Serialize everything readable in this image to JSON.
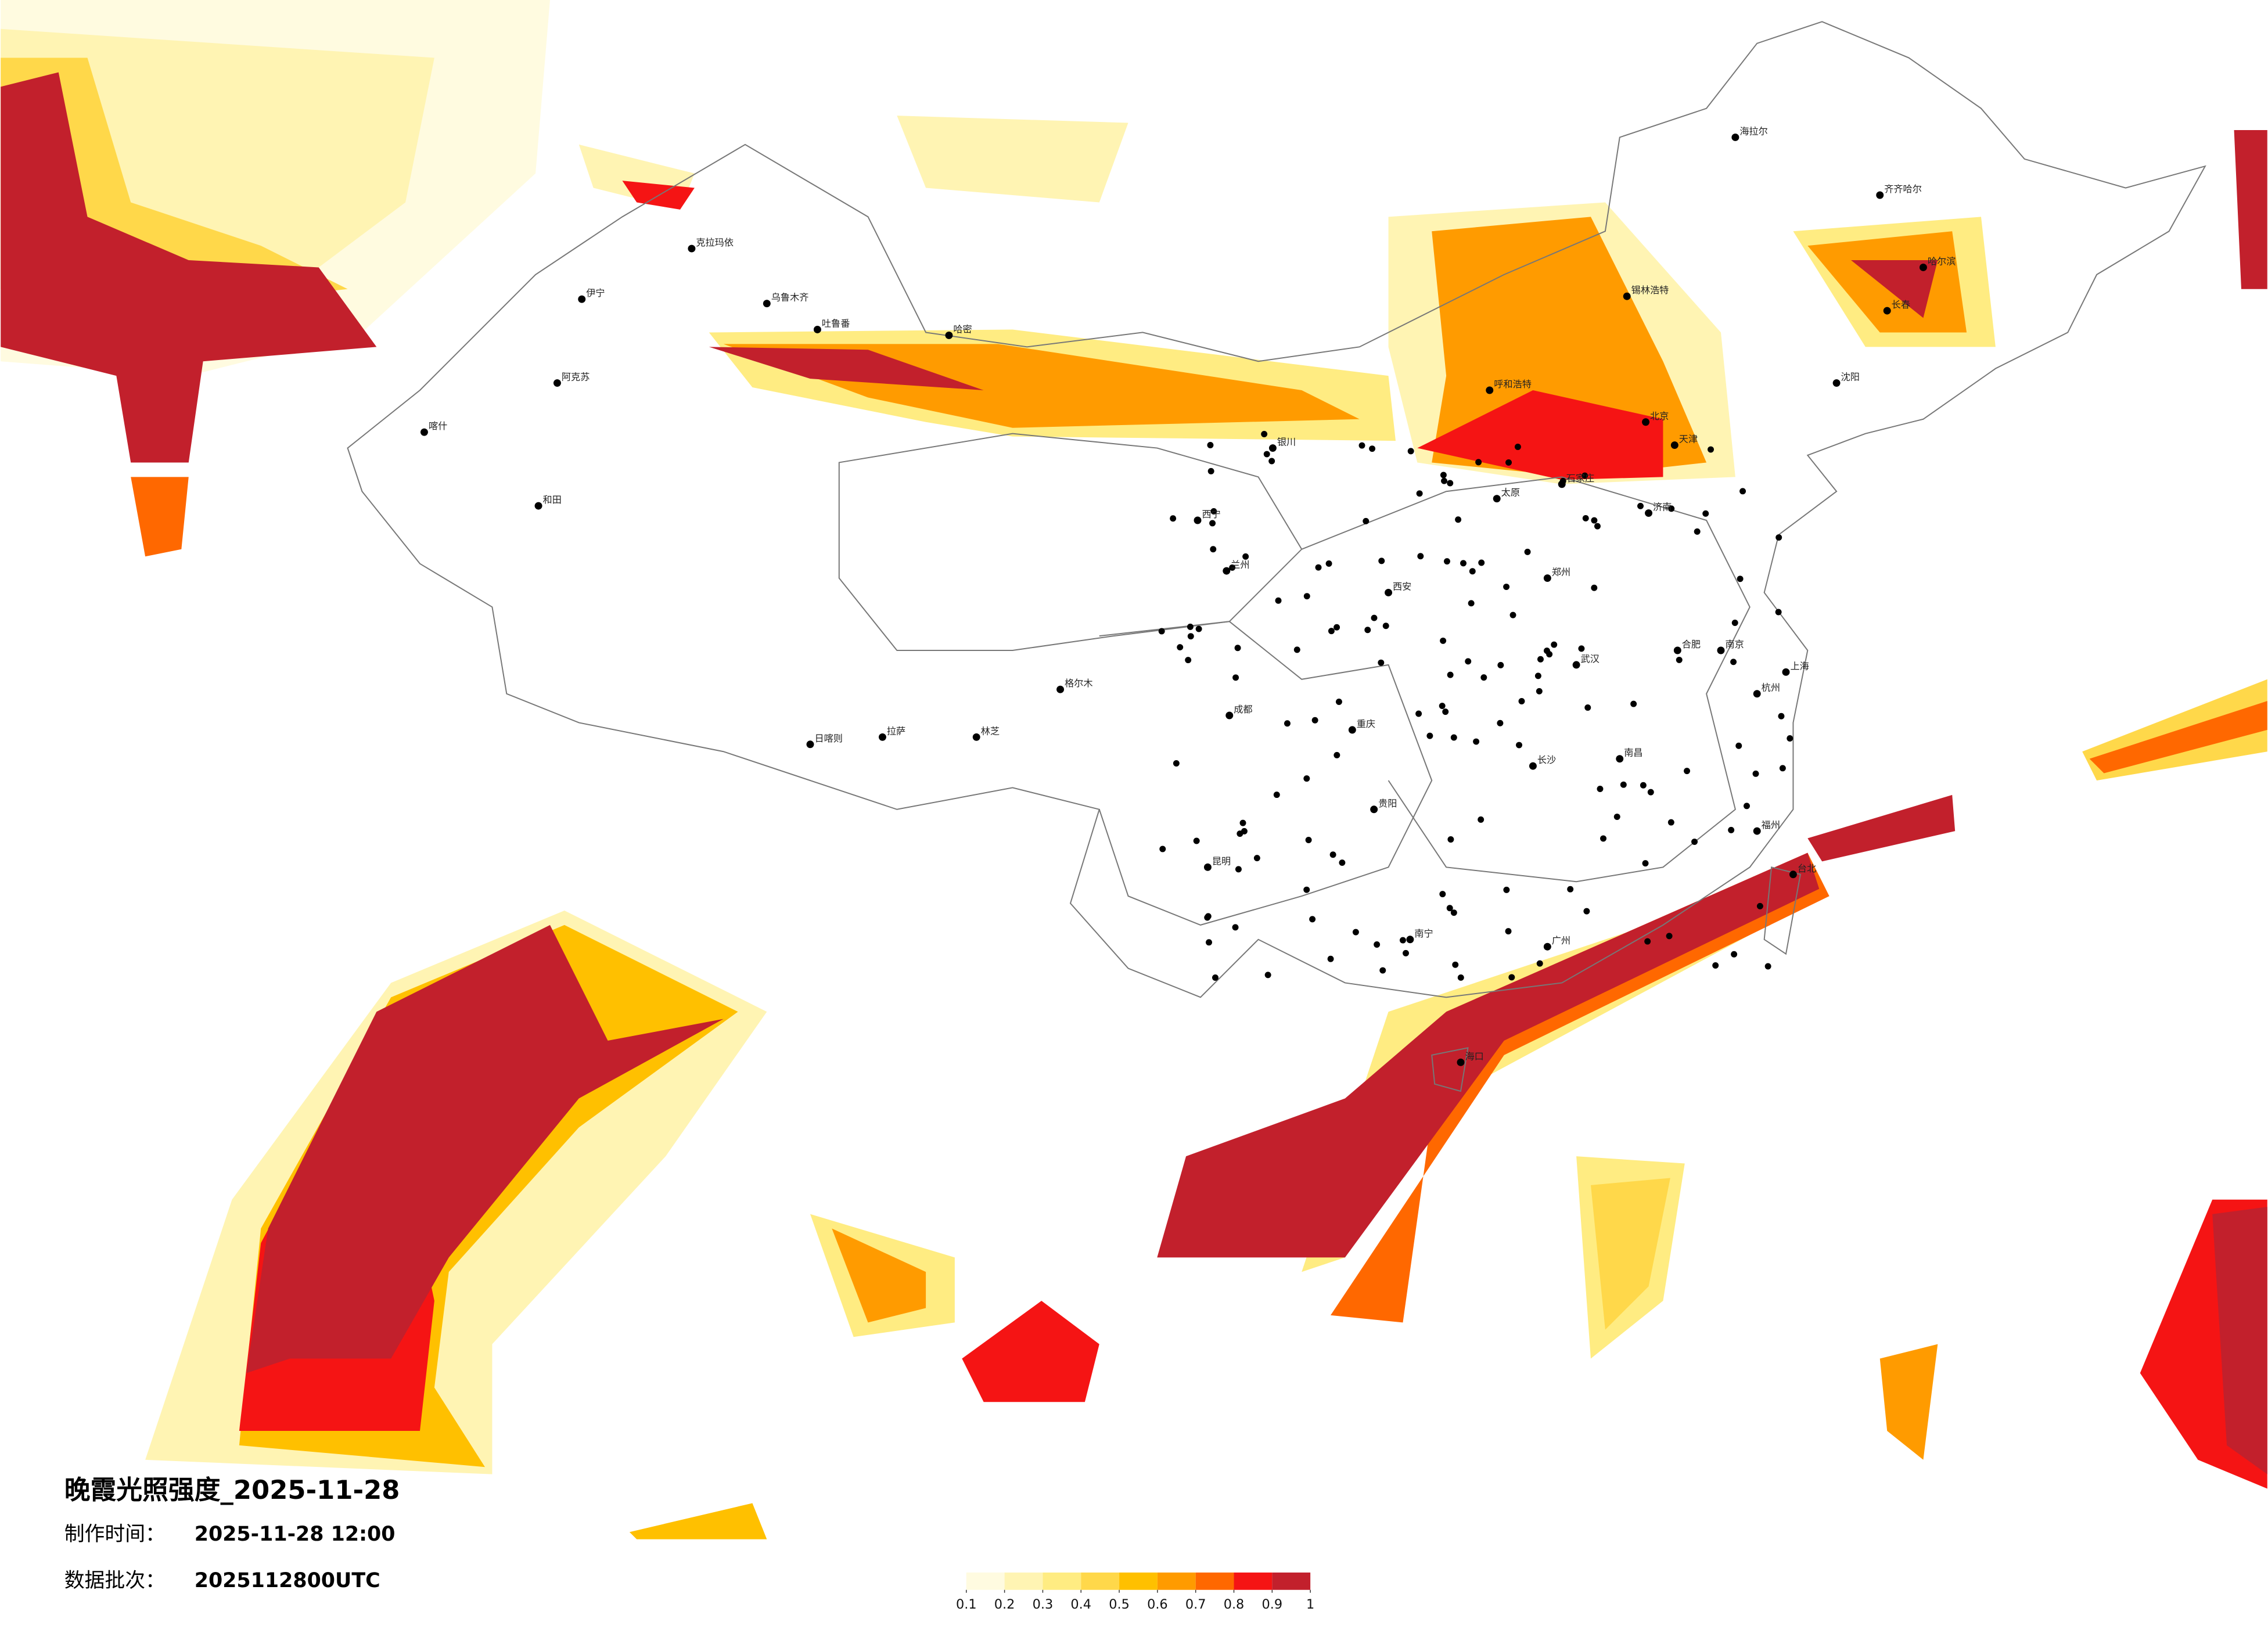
{
  "title": "晚霞光照强度_2025-11-28",
  "info": [
    {
      "label": "制作时间：",
      "value": "2025-11-28 12:00"
    },
    {
      "label": "数据批次：",
      "value": "2025112800UTC"
    }
  ],
  "legend": {
    "ticks": [
      0.1,
      0.2,
      0.3,
      0.4,
      0.5,
      0.6,
      0.7,
      0.8,
      0.9,
      1
    ],
    "colors": [
      "#fffbe0",
      "#fff4b3",
      "#ffec82",
      "#ffd84a",
      "#ffc000",
      "#ff9b00",
      "#ff6800",
      "#f51414",
      "#c2202c"
    ]
  },
  "cities": [
    "克拉玛依",
    "乌鲁木齐",
    "伊宁",
    "阿克苏",
    "喀什",
    "和田",
    "哈密",
    "吐鲁番",
    "格尔木",
    "拉萨",
    "日喀则",
    "林芝",
    "西宁",
    "兰州",
    "银川",
    "呼和浩特",
    "北京",
    "天津",
    "石家庄",
    "太原",
    "济南",
    "郑州",
    "西安",
    "成都",
    "重庆",
    "武汉",
    "长沙",
    "南昌",
    "合肥",
    "南京",
    "上海",
    "杭州",
    "福州",
    "广州",
    "南宁",
    "昆明",
    "贵阳",
    "海口",
    "台北",
    "沈阳",
    "长春",
    "哈尔滨",
    "齐齐哈尔",
    "海拉尔",
    "锡林浩特"
  ]
}
